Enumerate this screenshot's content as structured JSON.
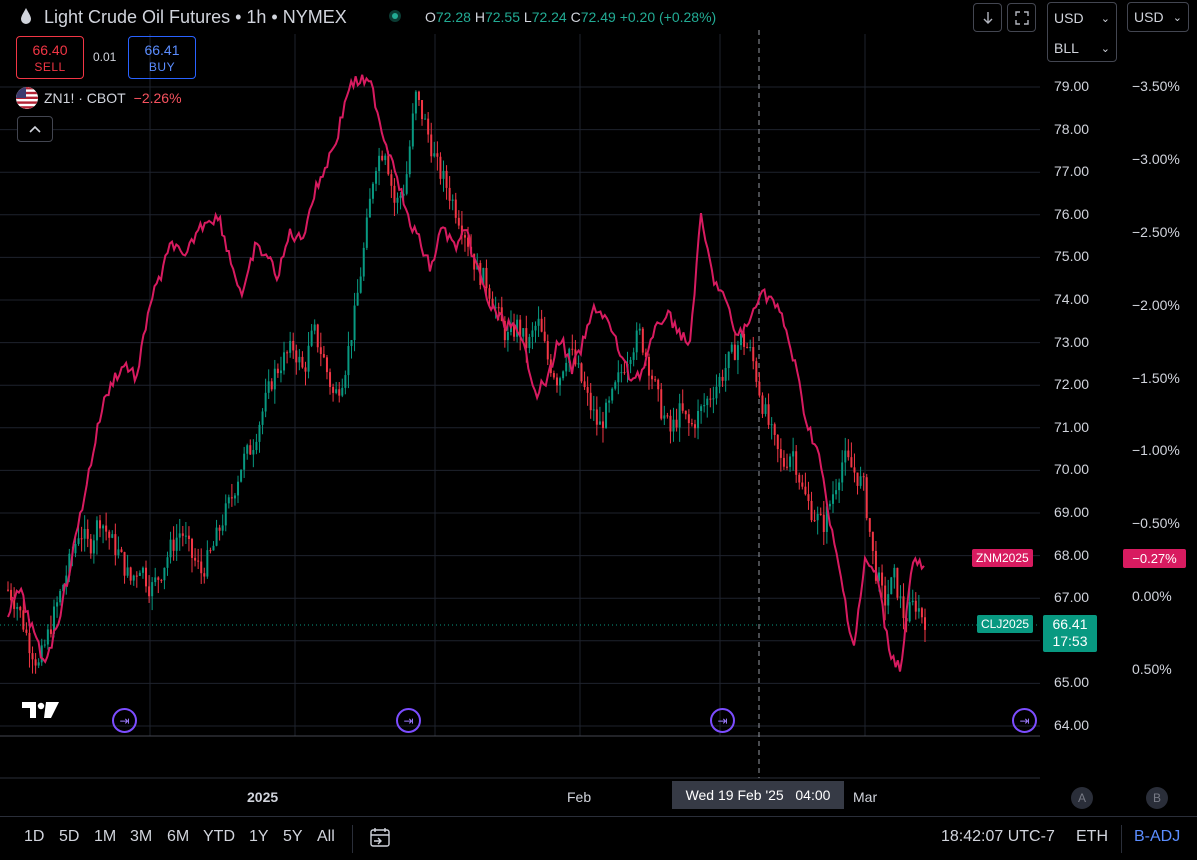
{
  "header": {
    "title": "Light Crude Oil Futures • 1h • NYMEX",
    "ohlc": {
      "o_key": "O",
      "o": "72.28",
      "h_key": "H",
      "h": "72.55",
      "l_key": "L",
      "l": "72.24",
      "c_key": "C",
      "c": "72.49",
      "change": "+0.20 (+0.28%)"
    }
  },
  "trade": {
    "sell_price": "66.40",
    "sell_label": "SELL",
    "spread": "0.01",
    "buy_price": "66.41",
    "buy_label": "BUY"
  },
  "compare": {
    "symbol": "ZN1! · CBOT",
    "change": "−2.26%"
  },
  "toolbar": {
    "currency": "USD",
    "unit": "BLL",
    "currency2": "USD"
  },
  "price_axis": [
    "79.00",
    "78.00",
    "77.00",
    "76.00",
    "75.00",
    "74.00",
    "73.00",
    "72.00",
    "71.00",
    "70.00",
    "69.00",
    "68.00",
    "67.00",
    "66.00",
    "65.00",
    "64.00"
  ],
  "percent_axis": [
    "−3.50%",
    "−3.00%",
    "−2.50%",
    "−2.00%",
    "−1.50%",
    "−1.00%",
    "−0.50%",
    "0.00%",
    "0.50%"
  ],
  "tags": {
    "znm_symbol": "ZNM2025",
    "znm_pct": "−0.27%",
    "clj_symbol": "CLJ2025",
    "clj_price": "66.41",
    "clj_countdown": "17:53"
  },
  "time_axis": {
    "labels": [
      "2025",
      "Feb",
      "Mar"
    ],
    "crosshair_date": "Wed 19 Feb '25",
    "crosshair_time": "04:00",
    "scale_a": "A",
    "scale_b": "B"
  },
  "bottom_bar": {
    "ranges": [
      "1D",
      "5D",
      "1M",
      "3M",
      "6M",
      "YTD",
      "1Y",
      "5Y",
      "All"
    ],
    "clock": "18:42:07 UTC-7",
    "session": "ETH",
    "adjust": "B-ADJ"
  },
  "colors": {
    "up": "#089981",
    "down": "#f23645",
    "compare_line": "#d81b60",
    "accent": "#2962ff"
  },
  "chart_data": {
    "type": "line",
    "series": [
      {
        "name": "CLJ2025",
        "values": [
          67.2,
          66.8,
          66.0,
          65.4,
          66.2,
          67.0,
          67.8,
          68.6,
          68.2,
          68.9,
          68.4,
          68.0,
          67.4,
          67.8,
          67.2,
          67.6,
          68.2,
          68.6,
          68.0,
          67.6,
          68.1,
          68.8,
          69.4,
          70.2,
          70.6,
          71.4,
          72.2,
          72.6,
          72.9,
          72.3,
          73.3,
          72.6,
          71.7,
          72.3,
          73.6,
          75.3,
          77.2,
          77.6,
          76.2,
          76.7,
          78.8,
          78.1,
          77.2,
          76.7,
          76.1,
          75.5,
          74.7,
          74.4,
          73.7,
          73.1,
          73.4,
          72.9,
          73.5,
          72.6,
          72.1,
          72.9,
          72.3,
          71.6,
          71.0,
          71.5,
          72.2,
          72.8,
          73.2,
          72.4,
          71.5,
          70.9,
          71.4,
          71.0,
          71.4,
          71.8,
          72.2,
          72.7,
          73.1,
          72.7,
          71.6,
          70.8,
          70.1,
          70.5,
          69.5,
          69.0,
          68.7,
          69.5,
          70.3,
          70.0,
          69.6,
          67.8,
          66.9,
          67.5,
          66.5,
          66.9,
          66.5
        ]
      },
      {
        "name": "ZNM2025",
        "values": [
          0.1,
          -0.05,
          0.2,
          0.45,
          0.25,
          -0.1,
          -0.5,
          -0.9,
          -1.3,
          -1.5,
          -1.6,
          -1.5,
          -2.0,
          -2.2,
          -2.45,
          -2.3,
          -2.5,
          -2.6,
          -2.6,
          -2.3,
          -2.05,
          -2.4,
          -2.35,
          -2.2,
          -2.5,
          -2.45,
          -2.75,
          -2.95,
          -3.15,
          -3.5,
          -3.55,
          -3.5,
          -3.15,
          -2.95,
          -2.6,
          -2.45,
          -2.25,
          -2.55,
          -2.4,
          -2.5,
          -2.25,
          -2.0,
          -1.9,
          -1.85,
          -1.7,
          -1.4,
          -1.5,
          -1.8,
          -1.55,
          -1.75,
          -2.0,
          -1.9,
          -1.7,
          -1.5,
          -1.55,
          -1.8,
          -1.95,
          -1.85,
          -1.7,
          -2.6,
          -2.2,
          -2.05,
          -1.8,
          -1.85,
          -2.1,
          -2.05,
          -1.9,
          -1.6,
          -1.2,
          -1.0,
          -0.5,
          -0.1,
          0.35,
          -0.25,
          -0.15,
          0.35,
          0.5,
          -0.25,
          -0.2
        ]
      }
    ],
    "y_left_label": "",
    "ylim_price": [
      64,
      79.5
    ],
    "ylim_percent": [
      0.6,
      -3.7
    ],
    "grid": true
  }
}
